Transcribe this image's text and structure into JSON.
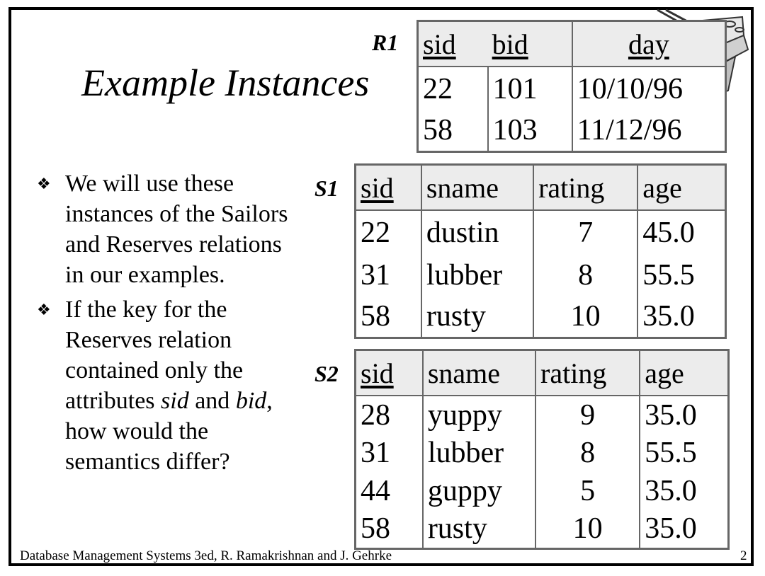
{
  "title": "Example Instances",
  "r1": {
    "label": "R1",
    "columns": [
      "sid",
      "bid",
      "day"
    ],
    "rows": [
      [
        "22",
        "101",
        "10/10/96"
      ],
      [
        "58",
        "103",
        "11/12/96"
      ]
    ]
  },
  "s1": {
    "label": "S1",
    "columns": [
      "sid",
      "sname",
      "rating",
      "age"
    ],
    "rows": [
      [
        "22",
        "dustin",
        "7",
        "45.0"
      ],
      [
        "31",
        "lubber",
        "8",
        "55.5"
      ],
      [
        "58",
        "rusty",
        "10",
        "35.0"
      ]
    ]
  },
  "s2": {
    "label": "S2",
    "columns": [
      "sid",
      "sname",
      "rating",
      "age"
    ],
    "rows": [
      [
        "28",
        "yuppy",
        "9",
        "35.0"
      ],
      [
        "31",
        "lubber",
        "8",
        "55.5"
      ],
      [
        "44",
        "guppy",
        "5",
        "35.0"
      ],
      [
        "58",
        "rusty",
        "10",
        "35.0"
      ]
    ]
  },
  "bullets": {
    "b1": "We will use these instances of the Sailors and Reserves relations in our examples.",
    "b2_a": "If the key for the Reserves relation contained only the attributes ",
    "b2_sid": "sid",
    "b2_and": " and ",
    "b2_bid": "bid",
    "b2_b": ", how would the semantics differ?"
  },
  "footer": "Database Management Systems 3ed,  R. Ramakrishnan and J. Gehrke",
  "page_number": "2"
}
